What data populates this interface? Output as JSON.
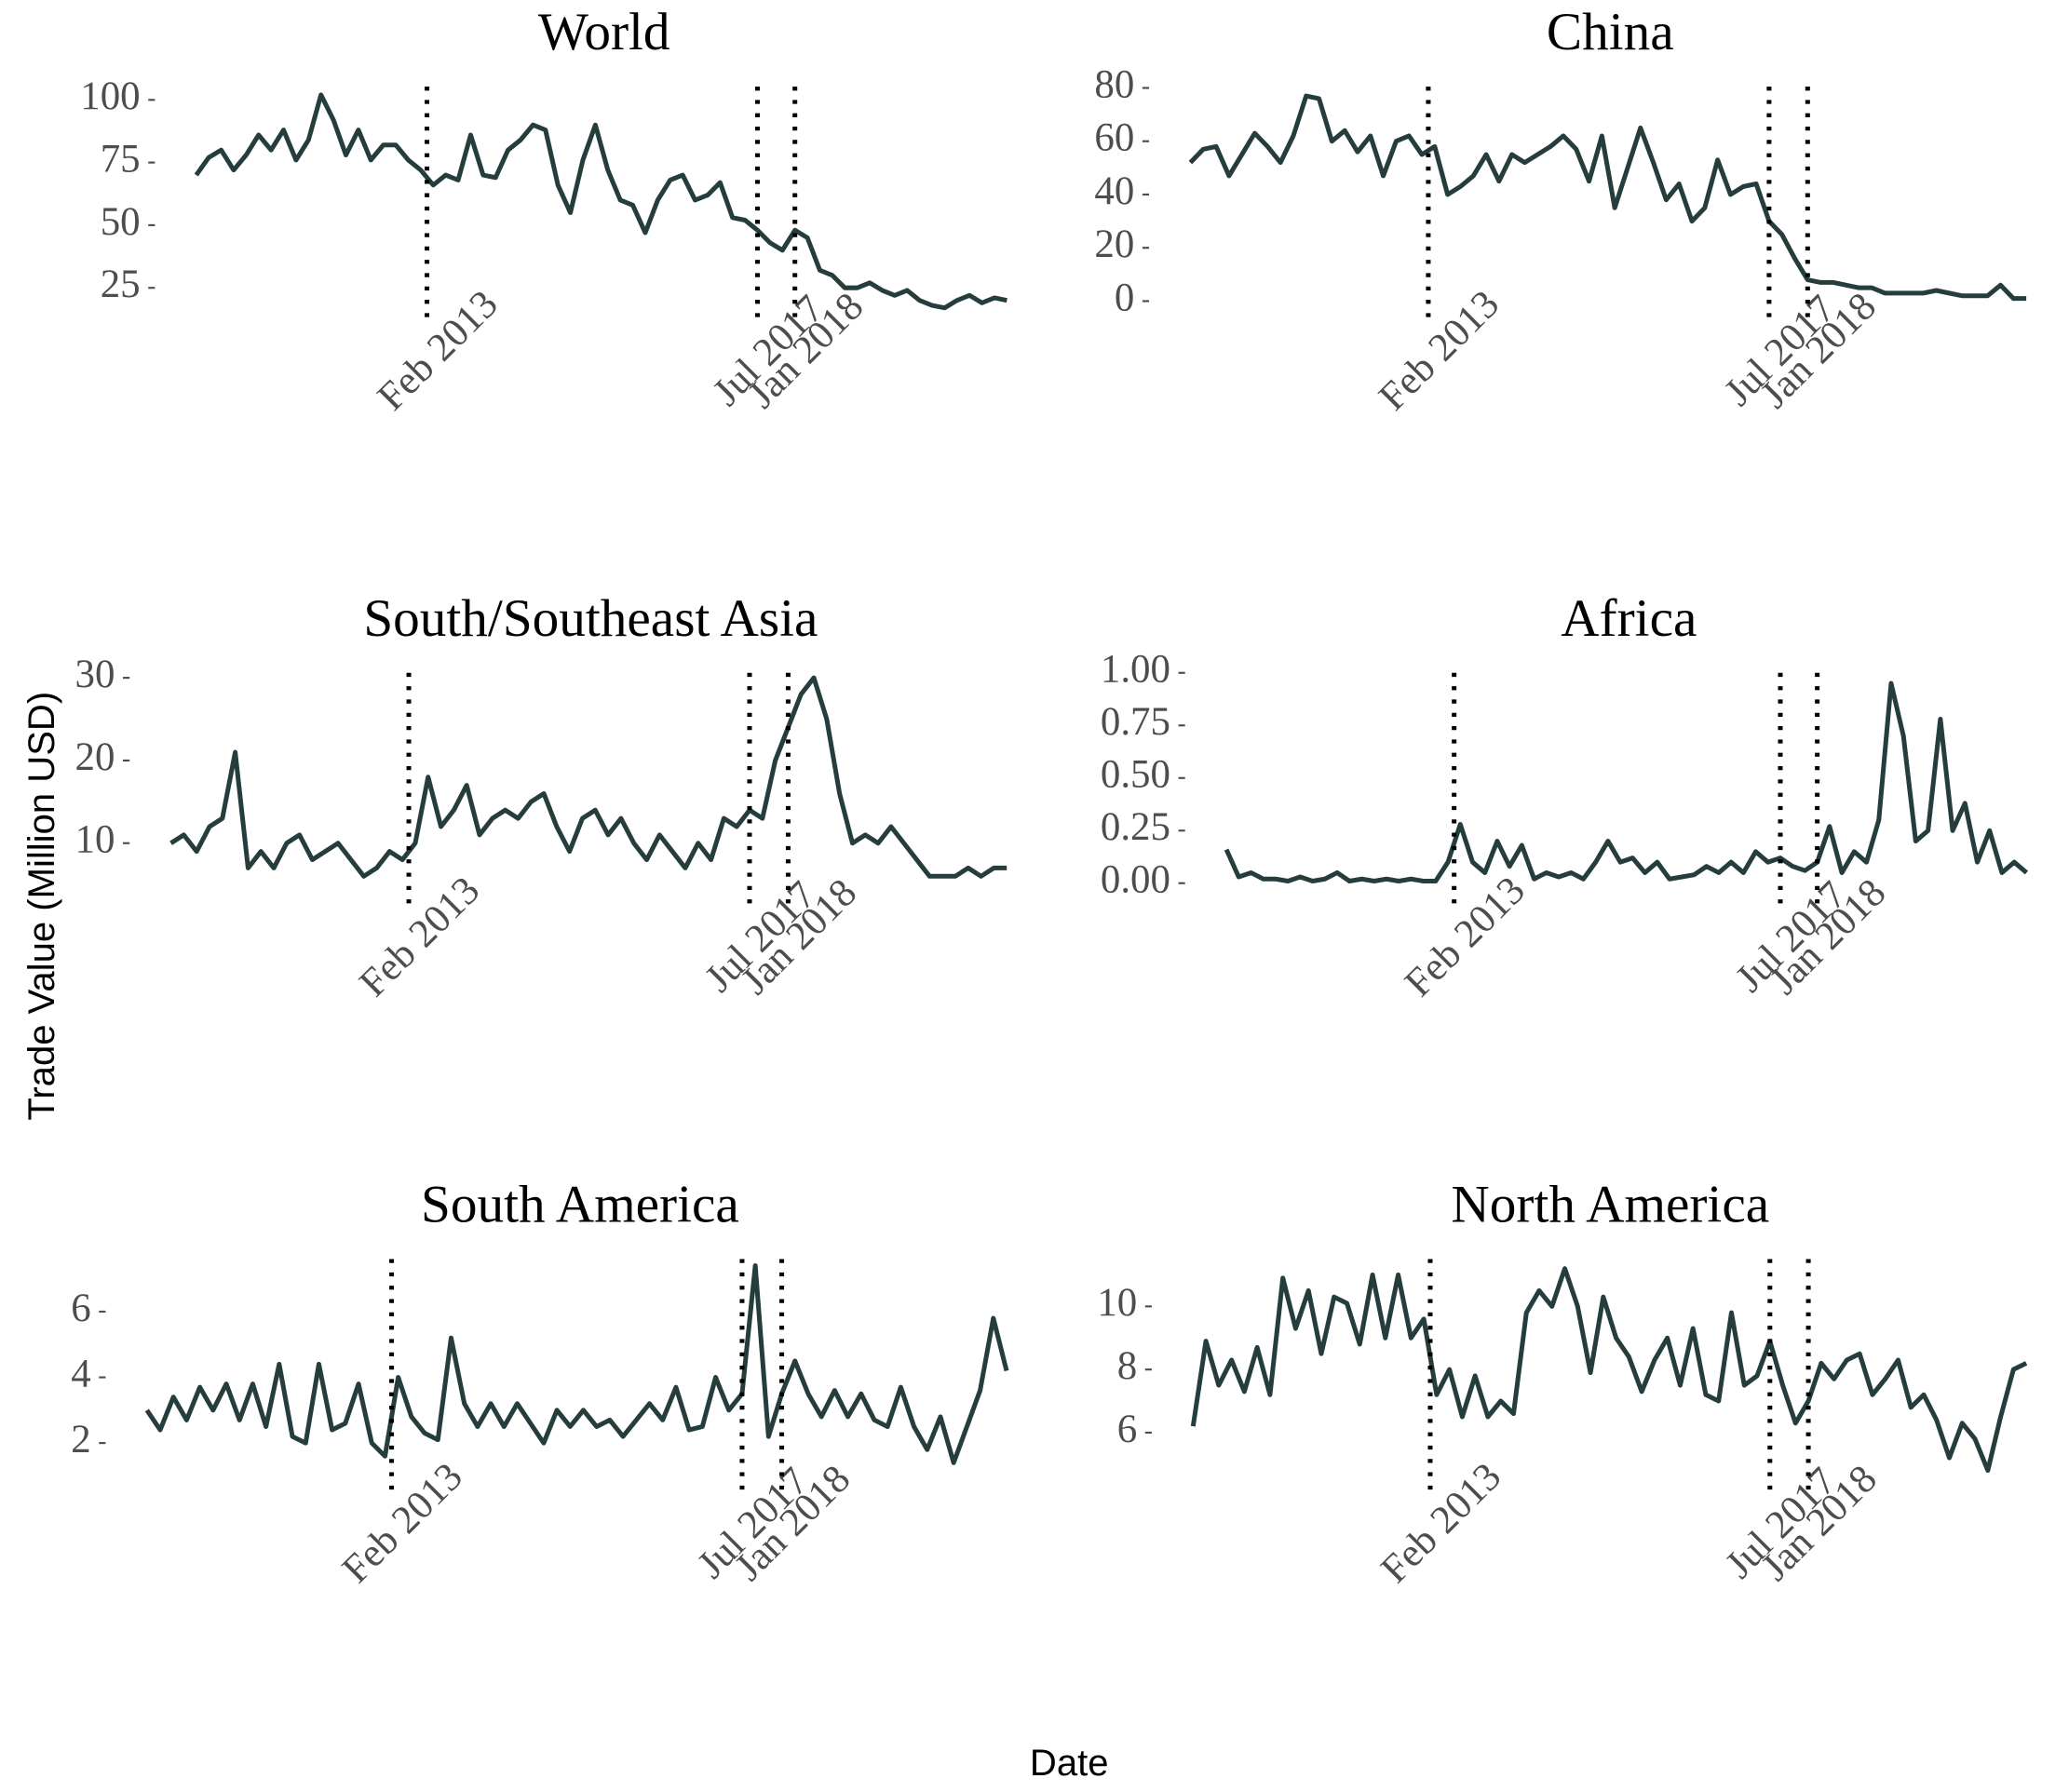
{
  "ylabel": "Trade Value (Million USD)",
  "xlabel": "Date",
  "chart_data": [
    {
      "type": "line",
      "title": "World",
      "color": "#253d3d",
      "x": [
        "2010-01",
        "2010-03",
        "2010-05",
        "2010-07",
        "2010-09",
        "2010-11",
        "2011-01",
        "2011-03",
        "2011-05",
        "2011-07",
        "2011-09",
        "2011-11",
        "2012-01",
        "2012-03",
        "2012-05",
        "2012-07",
        "2012-09",
        "2012-11",
        "2013-01",
        "2013-03",
        "2013-05",
        "2013-07",
        "2013-09",
        "2013-11",
        "2014-01",
        "2014-03",
        "2014-05",
        "2014-07",
        "2014-09",
        "2014-11",
        "2015-01",
        "2015-03",
        "2015-05",
        "2015-07",
        "2015-09",
        "2015-11",
        "2016-01",
        "2016-03",
        "2016-05",
        "2016-07",
        "2016-09",
        "2016-11",
        "2017-01",
        "2017-03",
        "2017-05",
        "2017-07",
        "2017-09",
        "2017-11",
        "2018-01",
        "2018-03",
        "2018-05",
        "2018-07",
        "2018-09",
        "2018-11",
        "2019-01",
        "2019-03",
        "2019-05",
        "2019-07",
        "2019-09",
        "2019-11",
        "2020-01",
        "2020-03",
        "2020-05",
        "2020-07",
        "2020-09",
        "2020-11"
      ],
      "values": [
        70,
        77,
        80,
        72,
        78,
        86,
        80,
        88,
        76,
        84,
        102,
        92,
        78,
        88,
        76,
        82,
        82,
        76,
        72,
        66,
        70,
        68,
        86,
        70,
        69,
        80,
        84,
        90,
        88,
        66,
        55,
        76,
        90,
        72,
        60,
        58,
        47,
        60,
        68,
        70,
        60,
        62,
        67,
        53,
        52,
        48,
        43,
        40,
        48,
        45,
        32,
        30,
        25,
        25,
        27,
        24,
        22,
        24,
        20,
        18,
        17,
        20,
        22,
        19,
        21,
        20
      ],
      "xlim": [
        "2010-01",
        "2020-12"
      ],
      "ylim": [
        9.6,
        105.3
      ],
      "yticks": [
        25,
        50,
        75,
        100
      ],
      "xticks": [
        {
          "value": "2013-02",
          "label": "Feb 2013"
        },
        {
          "value": "2017-07",
          "label": "Jul 2017"
        },
        {
          "value": "2018-01",
          "label": "Jan 2018"
        }
      ]
    },
    {
      "type": "line",
      "title": "China",
      "color": "#253d3d",
      "x": [
        "2010-01",
        "2010-03",
        "2010-05",
        "2010-07",
        "2010-09",
        "2010-11",
        "2011-01",
        "2011-03",
        "2011-05",
        "2011-07",
        "2011-09",
        "2011-11",
        "2012-01",
        "2012-03",
        "2012-05",
        "2012-07",
        "2012-09",
        "2012-11",
        "2013-01",
        "2013-03",
        "2013-05",
        "2013-07",
        "2013-09",
        "2013-11",
        "2014-01",
        "2014-03",
        "2014-05",
        "2014-07",
        "2014-09",
        "2014-11",
        "2015-01",
        "2015-03",
        "2015-05",
        "2015-07",
        "2015-09",
        "2015-11",
        "2016-01",
        "2016-03",
        "2016-05",
        "2016-07",
        "2016-09",
        "2016-11",
        "2017-01",
        "2017-03",
        "2017-05",
        "2017-07",
        "2017-09",
        "2017-11",
        "2018-01",
        "2018-03",
        "2018-05",
        "2018-07",
        "2018-09",
        "2018-11",
        "2019-01",
        "2019-03",
        "2019-05",
        "2019-07",
        "2019-09",
        "2019-11",
        "2020-01",
        "2020-03",
        "2020-05",
        "2020-07",
        "2020-09",
        "2020-11"
      ],
      "values": [
        52,
        57,
        58,
        47,
        55,
        63,
        58,
        52,
        62,
        77,
        76,
        60,
        64,
        56,
        62,
        47,
        60,
        62,
        55,
        58,
        40,
        43,
        47,
        55,
        45,
        55,
        52,
        55,
        58,
        62,
        57,
        45,
        62,
        35,
        50,
        65,
        52,
        38,
        44,
        30,
        35,
        53,
        40,
        43,
        44,
        30,
        25,
        16,
        8,
        7,
        7,
        6,
        5,
        5,
        3,
        3,
        3,
        3,
        4,
        3,
        2,
        2,
        2,
        6,
        1,
        1
      ],
      "xlim": [
        "2010-01",
        "2020-12"
      ],
      "ylim": [
        -9.5,
        80.5
      ],
      "yticks": [
        0,
        20,
        40,
        60,
        80
      ],
      "xticks": [
        {
          "value": "2013-02",
          "label": "Feb 2013"
        },
        {
          "value": "2017-07",
          "label": "Jul 2017"
        },
        {
          "value": "2018-01",
          "label": "Jan 2018"
        }
      ]
    },
    {
      "type": "line",
      "title": "South/Southeast Asia",
      "color": "#253d3d",
      "x": [
        "2010-01",
        "2010-03",
        "2010-05",
        "2010-07",
        "2010-09",
        "2010-11",
        "2011-01",
        "2011-03",
        "2011-05",
        "2011-07",
        "2011-09",
        "2011-11",
        "2012-01",
        "2012-03",
        "2012-05",
        "2012-07",
        "2012-09",
        "2012-11",
        "2013-01",
        "2013-03",
        "2013-05",
        "2013-07",
        "2013-09",
        "2013-11",
        "2014-01",
        "2014-03",
        "2014-05",
        "2014-07",
        "2014-09",
        "2014-11",
        "2015-01",
        "2015-03",
        "2015-05",
        "2015-07",
        "2015-09",
        "2015-11",
        "2016-01",
        "2016-03",
        "2016-05",
        "2016-07",
        "2016-09",
        "2016-11",
        "2017-01",
        "2017-03",
        "2017-05",
        "2017-07",
        "2017-09",
        "2017-11",
        "2018-01",
        "2018-03",
        "2018-05",
        "2018-07",
        "2018-09",
        "2018-11",
        "2019-01",
        "2019-03",
        "2019-05",
        "2019-07",
        "2019-09",
        "2019-11",
        "2020-01",
        "2020-03",
        "2020-05",
        "2020-07",
        "2020-09",
        "2020-11"
      ],
      "values": [
        10,
        11,
        9,
        12,
        13,
        21,
        7,
        9,
        7,
        10,
        11,
        8,
        9,
        10,
        8,
        6,
        7,
        9,
        8,
        10,
        18,
        12,
        14,
        17,
        11,
        13,
        14,
        13,
        15,
        16,
        12,
        9,
        13,
        14,
        11,
        13,
        10,
        8,
        11,
        9,
        7,
        10,
        8,
        13,
        12,
        14,
        13,
        20,
        24,
        28,
        30,
        25,
        16,
        10,
        11,
        10,
        12,
        10,
        8,
        6,
        6,
        6,
        7,
        6,
        7,
        7
      ],
      "xlim": [
        "2010-01",
        "2020-12"
      ],
      "ylim": [
        1.6,
        30.6
      ],
      "yticks": [
        10,
        20,
        30
      ],
      "xticks": [
        {
          "value": "2013-02",
          "label": "Feb 2013"
        },
        {
          "value": "2017-07",
          "label": "Jul 2017"
        },
        {
          "value": "2018-01",
          "label": "Jan 2018"
        }
      ]
    },
    {
      "type": "line",
      "title": "Africa",
      "color": "#253d3d",
      "x": [
        "2010-01",
        "2010-03",
        "2010-05",
        "2010-07",
        "2010-09",
        "2010-11",
        "2011-01",
        "2011-03",
        "2011-05",
        "2011-07",
        "2011-09",
        "2011-11",
        "2012-01",
        "2012-03",
        "2012-05",
        "2012-07",
        "2012-09",
        "2012-11",
        "2013-01",
        "2013-03",
        "2013-05",
        "2013-07",
        "2013-09",
        "2013-11",
        "2014-01",
        "2014-03",
        "2014-05",
        "2014-07",
        "2014-09",
        "2014-11",
        "2015-01",
        "2015-03",
        "2015-05",
        "2015-07",
        "2015-09",
        "2015-11",
        "2016-01",
        "2016-03",
        "2016-05",
        "2016-07",
        "2016-09",
        "2016-11",
        "2017-01",
        "2017-03",
        "2017-05",
        "2017-07",
        "2017-09",
        "2017-11",
        "2018-01",
        "2018-03",
        "2018-05",
        "2018-07",
        "2018-09",
        "2018-11",
        "2019-01",
        "2019-03",
        "2019-05",
        "2019-07",
        "2019-09",
        "2019-11",
        "2020-01",
        "2020-03",
        "2020-05",
        "2020-07",
        "2020-09",
        "2020-11"
      ],
      "values": [
        0.16,
        0.03,
        0.05,
        0.02,
        0.02,
        0.01,
        0.03,
        0.01,
        0.02,
        0.05,
        0.01,
        0.02,
        0.01,
        0.02,
        0.01,
        0.02,
        0.01,
        0.01,
        0.1,
        0.28,
        0.1,
        0.05,
        0.2,
        0.08,
        0.18,
        0.02,
        0.05,
        0.03,
        0.05,
        0.02,
        0.1,
        0.2,
        0.1,
        0.12,
        0.05,
        0.1,
        0.02,
        0.03,
        0.04,
        0.08,
        0.05,
        0.1,
        0.05,
        0.15,
        0.1,
        0.12,
        0.08,
        0.06,
        0.1,
        0.27,
        0.05,
        0.15,
        0.1,
        0.3,
        0.95,
        0.7,
        0.2,
        0.25,
        0.78,
        0.25,
        0.38,
        0.1,
        0.25,
        0.05,
        0.1,
        0.05
      ],
      "xlim": [
        "2010-01",
        "2020-12"
      ],
      "ylim": [
        -0.14,
        1.0
      ],
      "yticks": [
        {
          "value": 0,
          "label": "0.00"
        },
        {
          "value": 0.25,
          "label": "0.25"
        },
        {
          "value": 0.5,
          "label": "0.50"
        },
        {
          "value": 0.75,
          "label": "0.75"
        },
        {
          "value": 1,
          "label": "1.00"
        }
      ],
      "xticks": [
        {
          "value": "2013-02",
          "label": "Feb 2013"
        },
        {
          "value": "2017-07",
          "label": "Jul 2017"
        },
        {
          "value": "2018-01",
          "label": "Jan 2018"
        }
      ]
    },
    {
      "type": "line",
      "title": "South America",
      "color": "#253d3d",
      "x": [
        "2010-01",
        "2010-03",
        "2010-05",
        "2010-07",
        "2010-09",
        "2010-11",
        "2011-01",
        "2011-03",
        "2011-05",
        "2011-07",
        "2011-09",
        "2011-11",
        "2012-01",
        "2012-03",
        "2012-05",
        "2012-07",
        "2012-09",
        "2012-11",
        "2013-01",
        "2013-03",
        "2013-05",
        "2013-07",
        "2013-09",
        "2013-11",
        "2014-01",
        "2014-03",
        "2014-05",
        "2014-07",
        "2014-09",
        "2014-11",
        "2015-01",
        "2015-03",
        "2015-05",
        "2015-07",
        "2015-09",
        "2015-11",
        "2016-01",
        "2016-03",
        "2016-05",
        "2016-07",
        "2016-09",
        "2016-11",
        "2017-01",
        "2017-03",
        "2017-05",
        "2017-07",
        "2017-09",
        "2017-11",
        "2018-01",
        "2018-03",
        "2018-05",
        "2018-07",
        "2018-09",
        "2018-11",
        "2019-01",
        "2019-03",
        "2019-05",
        "2019-07",
        "2019-09",
        "2019-11",
        "2020-01",
        "2020-03",
        "2020-05",
        "2020-07",
        "2020-09",
        "2020-11"
      ],
      "values": [
        3.0,
        2.4,
        3.4,
        2.7,
        3.7,
        3.0,
        3.8,
        2.7,
        3.8,
        2.5,
        4.4,
        2.2,
        2.0,
        4.4,
        2.4,
        2.6,
        3.8,
        2.0,
        1.6,
        4.0,
        2.8,
        2.3,
        2.1,
        5.2,
        3.2,
        2.5,
        3.2,
        2.5,
        3.2,
        2.6,
        2.0,
        3.0,
        2.5,
        3.0,
        2.5,
        2.7,
        2.2,
        2.7,
        3.2,
        2.7,
        3.7,
        2.4,
        2.5,
        4.0,
        3.0,
        3.5,
        7.4,
        2.2,
        3.5,
        4.5,
        3.5,
        2.8,
        3.6,
        2.8,
        3.5,
        2.7,
        2.5,
        3.7,
        2.5,
        1.8,
        2.8,
        1.4,
        2.5,
        3.6,
        5.8,
        4.2
      ],
      "xlim": [
        "2010-01",
        "2020-12"
      ],
      "ylim": [
        0.3,
        7.6
      ],
      "yticks": [
        2,
        4,
        6
      ],
      "xticks": [
        {
          "value": "2013-02",
          "label": "Feb 2013"
        },
        {
          "value": "2017-07",
          "label": "Jul 2017"
        },
        {
          "value": "2018-01",
          "label": "Jan 2018"
        }
      ]
    },
    {
      "type": "line",
      "title": "North America",
      "color": "#253d3d",
      "x": [
        "2010-01",
        "2010-03",
        "2010-05",
        "2010-07",
        "2010-09",
        "2010-11",
        "2011-01",
        "2011-03",
        "2011-05",
        "2011-07",
        "2011-09",
        "2011-11",
        "2012-01",
        "2012-03",
        "2012-05",
        "2012-07",
        "2012-09",
        "2012-11",
        "2013-01",
        "2013-03",
        "2013-05",
        "2013-07",
        "2013-09",
        "2013-11",
        "2014-01",
        "2014-03",
        "2014-05",
        "2014-07",
        "2014-09",
        "2014-11",
        "2015-01",
        "2015-03",
        "2015-05",
        "2015-07",
        "2015-09",
        "2015-11",
        "2016-01",
        "2016-03",
        "2016-05",
        "2016-07",
        "2016-09",
        "2016-11",
        "2017-01",
        "2017-03",
        "2017-05",
        "2017-07",
        "2017-09",
        "2017-11",
        "2018-01",
        "2018-03",
        "2018-05",
        "2018-07",
        "2018-09",
        "2018-11",
        "2019-01",
        "2019-03",
        "2019-05",
        "2019-07",
        "2019-09",
        "2019-11",
        "2020-01",
        "2020-03",
        "2020-05",
        "2020-07",
        "2020-09",
        "2020-11"
      ],
      "values": [
        6.2,
        8.9,
        7.5,
        8.3,
        7.3,
        8.7,
        7.2,
        10.9,
        9.3,
        10.5,
        8.5,
        10.3,
        10.1,
        8.8,
        11.0,
        9.0,
        11.0,
        9.0,
        9.6,
        7.2,
        8.0,
        6.5,
        7.8,
        6.5,
        7.0,
        6.6,
        9.8,
        10.5,
        10.0,
        11.2,
        10.0,
        7.9,
        10.3,
        9.0,
        8.4,
        7.3,
        8.3,
        9.0,
        7.5,
        9.3,
        7.2,
        7.0,
        9.8,
        7.5,
        7.8,
        8.9,
        7.5,
        6.3,
        7.0,
        8.2,
        7.7,
        8.3,
        8.5,
        7.2,
        7.7,
        8.3,
        6.8,
        7.2,
        6.4,
        5.2,
        6.3,
        5.8,
        4.8,
        6.5,
        8.0,
        8.2
      ],
      "xlim": [
        "2010-01",
        "2020-12"
      ],
      "ylim": [
        3.9,
        11.5
      ],
      "yticks": [
        6,
        8,
        10
      ],
      "xticks": [
        {
          "value": "2013-02",
          "label": "Feb 2013"
        },
        {
          "value": "2017-07",
          "label": "Jul 2017"
        },
        {
          "value": "2018-01",
          "label": "Jan 2018"
        }
      ]
    }
  ]
}
